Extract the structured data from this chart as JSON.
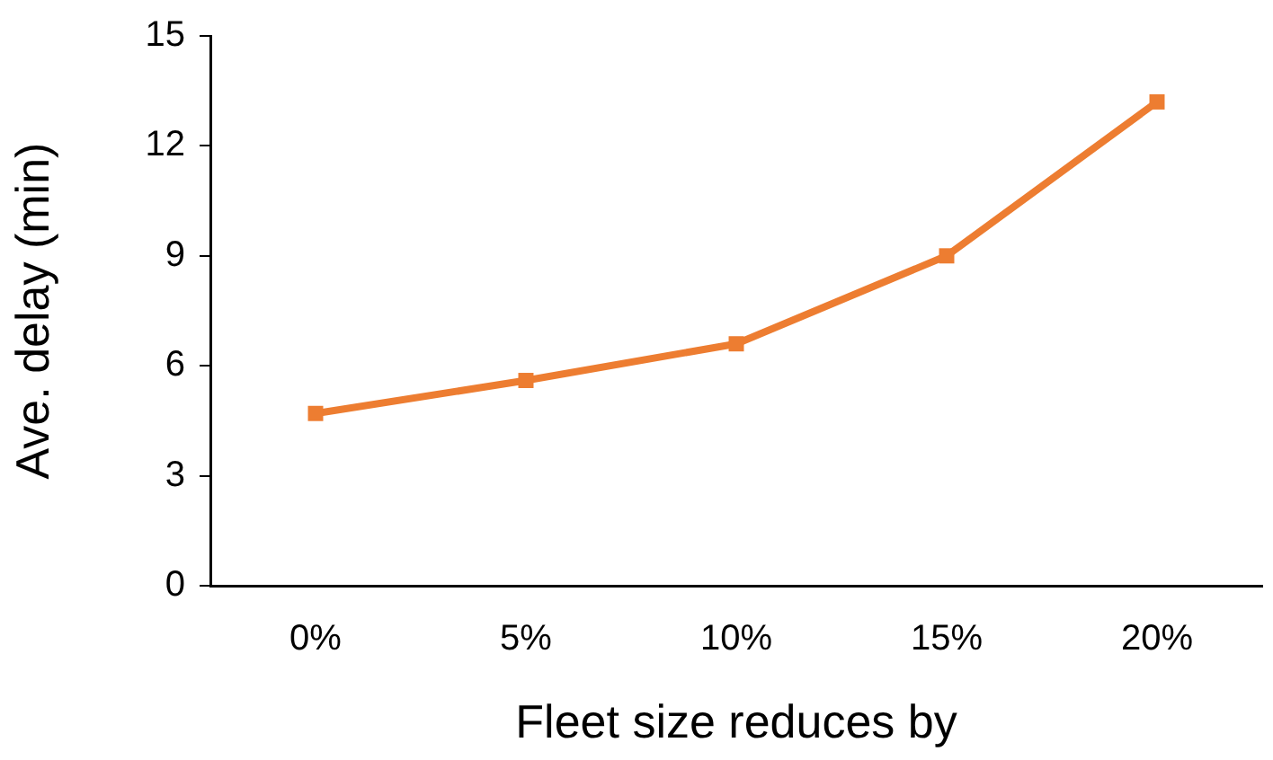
{
  "chart_data": {
    "type": "line",
    "xlabel": "Fleet size reduces by",
    "ylabel": "Ave. delay (min)",
    "categories": [
      "0%",
      "5%",
      "10%",
      "15%",
      "20%"
    ],
    "series": [
      {
        "color": "#ed7d31",
        "values": [
          4.7,
          5.6,
          6.6,
          9.0,
          13.2
        ]
      }
    ],
    "ylim": [
      0,
      15
    ],
    "yticks": [
      0,
      3,
      6,
      9,
      12,
      15
    ],
    "grid": false,
    "legend": false,
    "marker": "square",
    "line_style": "solid"
  }
}
